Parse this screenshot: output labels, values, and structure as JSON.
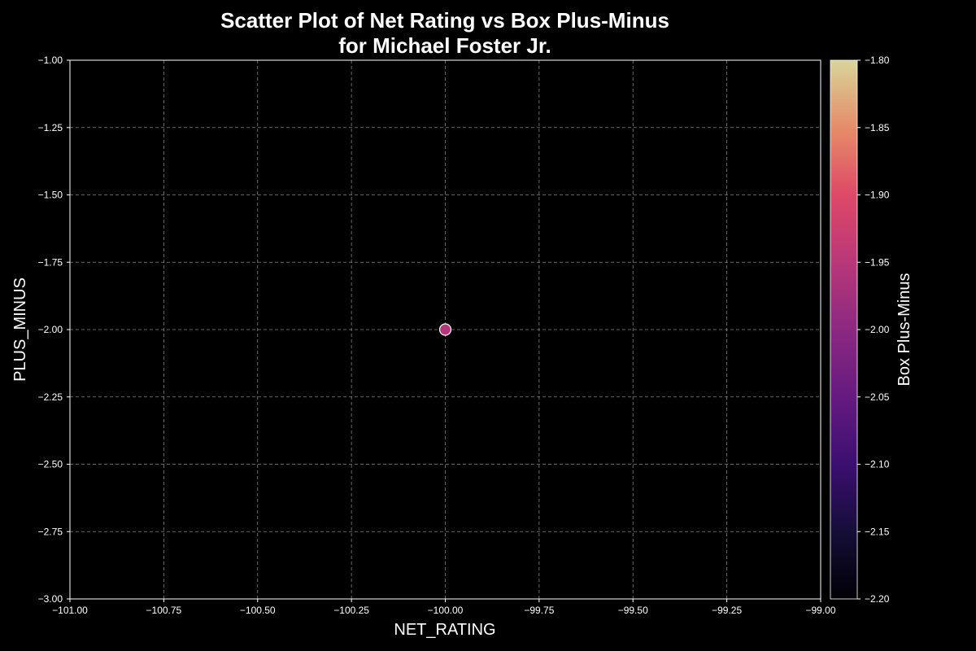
{
  "chart_data": {
    "type": "scatter",
    "title_lines": [
      "Scatter Plot of Net Rating vs Box Plus-Minus",
      "for Michael Foster Jr."
    ],
    "xlabel": "NET_RATING",
    "ylabel": "PLUS_MINUS",
    "xlim": [
      -101.0,
      -99.0
    ],
    "ylim": [
      -3.0,
      -1.0
    ],
    "xticks": [
      "−101.00",
      "−100.75",
      "−100.50",
      "−100.25",
      "−100.00",
      "−99.75",
      "−99.50",
      "−99.25",
      "−99.00"
    ],
    "yticks": [
      "−1.00",
      "−1.25",
      "−1.50",
      "−1.75",
      "−2.00",
      "−2.25",
      "−2.50",
      "−2.75",
      "−3.00"
    ],
    "grid": true,
    "points": [
      {
        "x": -100.0,
        "y": -2.0,
        "color_value": -2.0
      }
    ],
    "colorbar": {
      "label": "Box Plus-Minus",
      "range": [
        -2.2,
        -1.8
      ],
      "ticks": [
        "−1.80",
        "−1.85",
        "−1.90",
        "−1.95",
        "−2.00",
        "−2.05",
        "−2.10",
        "−2.15",
        "−2.20"
      ],
      "colormap": "magma"
    },
    "colors": {
      "background": "#000000",
      "axes": "#ffffff",
      "grid": "#b0b0b0",
      "point_fill": "#b5367a",
      "point_edge": "#ffffff"
    }
  }
}
